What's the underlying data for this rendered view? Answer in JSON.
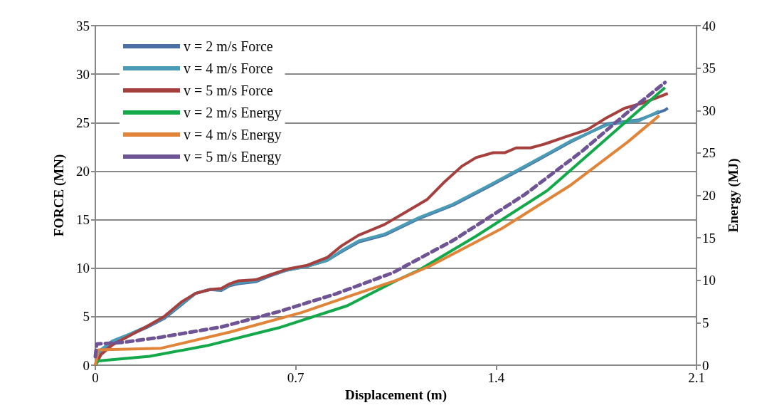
{
  "chart_data": {
    "type": "line",
    "xlabel": "Displacement (m)",
    "ylabel": "FORCE (MN)",
    "y2label": "Energy (MJ)",
    "xlim": [
      0,
      2.1
    ],
    "xticks": [
      0,
      0.7,
      1.4,
      2.1
    ],
    "ylim": [
      0,
      35
    ],
    "yticks": [
      0,
      5,
      10,
      15,
      20,
      25,
      30,
      35
    ],
    "y2lim": [
      0,
      40
    ],
    "y2ticks": [
      0,
      5,
      10,
      15,
      20,
      25,
      30,
      35,
      40
    ],
    "grid": "y",
    "legend": "top left",
    "marker": "none",
    "series": [
      {
        "name": "v = 2 m/s Force",
        "color": "#4a6fa5",
        "line_style": "solid",
        "x": [
          0,
          0.02,
          0.06,
          0.12,
          0.18,
          0.24,
          0.3,
          0.35,
          0.4,
          0.44,
          0.47,
          0.5,
          0.56,
          0.61,
          0.67,
          0.74,
          0.81,
          0.86,
          0.92,
          1.01,
          1.13,
          1.25,
          1.38,
          1.5,
          1.66,
          1.79,
          1.9,
          1.99,
          2.0
        ],
        "values": [
          0,
          1.5,
          2.4,
          3.1,
          3.9,
          4.8,
          6.2,
          7.4,
          7.8,
          7.7,
          8.2,
          8.4,
          8.6,
          9.2,
          9.8,
          10.2,
          10.8,
          11.7,
          12.7,
          13.4,
          15.1,
          16.5,
          18.5,
          20.4,
          23,
          24.9,
          25.3,
          26.3,
          26.5
        ]
      },
      {
        "name": "v = 4 m/s Force",
        "color": "#4a9bb5",
        "line_style": "solid",
        "x": [
          0,
          0.02,
          0.06,
          0.12,
          0.18,
          0.24,
          0.3,
          0.35,
          0.4,
          0.44,
          0.47,
          0.5,
          0.56,
          0.61,
          0.67,
          0.74,
          0.81,
          0.86,
          0.92,
          1.01,
          1.13,
          1.25,
          1.38,
          1.5,
          1.66,
          1.79,
          1.9,
          1.97
        ],
        "values": [
          0,
          1.6,
          2.5,
          3.2,
          4.0,
          4.9,
          6.3,
          7.4,
          7.8,
          7.8,
          8.3,
          8.5,
          8.7,
          9.3,
          9.8,
          10.2,
          10.8,
          11.8,
          12.8,
          13.5,
          15.2,
          16.6,
          18.6,
          20.5,
          23.1,
          24.8,
          25.2,
          26.2
        ]
      },
      {
        "name": "v = 5 m/s Force",
        "color": "#a5403e",
        "line_style": "solid",
        "x": [
          0,
          0.02,
          0.06,
          0.12,
          0.18,
          0.24,
          0.3,
          0.35,
          0.4,
          0.44,
          0.47,
          0.5,
          0.56,
          0.61,
          0.67,
          0.74,
          0.81,
          0.86,
          0.92,
          1.01,
          1.08,
          1.16,
          1.22,
          1.28,
          1.33,
          1.39,
          1.43,
          1.47,
          1.52,
          1.57,
          1.64,
          1.72,
          1.78,
          1.85,
          1.91,
          1.99,
          2.0
        ],
        "values": [
          0,
          1.1,
          2.1,
          3.05,
          4,
          5,
          6.5,
          7.4,
          7.8,
          7.9,
          8.4,
          8.7,
          8.8,
          9.3,
          9.9,
          10.3,
          11.1,
          12.3,
          13.4,
          14.5,
          15.7,
          17.1,
          18.9,
          20.5,
          21.4,
          21.9,
          21.9,
          22.4,
          22.4,
          22.8,
          23.5,
          24.3,
          25.4,
          26.5,
          27,
          27.9,
          28
        ]
      },
      {
        "name": "v = 2 m/s Energy",
        "color": "#13a84a",
        "line_style": "solid",
        "axis": "y2",
        "x": [
          0,
          0.01,
          0.19,
          0.39,
          0.64,
          0.88,
          1.06,
          1.13,
          1.33,
          1.58,
          1.82,
          1.99
        ],
        "values": [
          0,
          0.5,
          1.05,
          2.3,
          4.4,
          7.0,
          10.1,
          11.2,
          15.2,
          20.6,
          27.7,
          32.7
        ]
      },
      {
        "name": "v = 4 m/s Energy",
        "color": "#e0843a",
        "line_style": "solid",
        "axis": "y2",
        "x": [
          0,
          0.01,
          0.23,
          0.47,
          0.72,
          1.06,
          1.17,
          1.42,
          1.66,
          1.86,
          1.97
        ],
        "values": [
          0,
          1.8,
          2.0,
          3.9,
          6.2,
          10.1,
          11.7,
          16.1,
          21.2,
          26.3,
          29.4
        ]
      },
      {
        "name": "v = 5 m/s Energy",
        "color": "#6e5494",
        "line_style": "dashed",
        "axis": "y2",
        "x": [
          0,
          0.005,
          0.1,
          0.23,
          0.44,
          0.64,
          0.84,
          1.04,
          1.25,
          1.5,
          1.7,
          1.86,
          1.99
        ],
        "values": [
          1,
          2.5,
          2.7,
          3.3,
          4.5,
          6.3,
          8.4,
          10.9,
          14.7,
          20.1,
          25.2,
          29.8,
          33.3
        ]
      }
    ]
  }
}
